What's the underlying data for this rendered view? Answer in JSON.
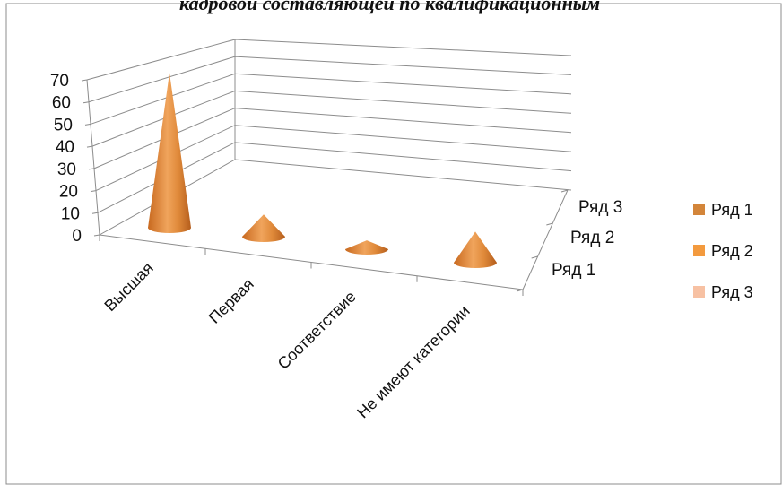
{
  "chart_data": {
    "type": "bar",
    "subtype": "3d-cone",
    "title": "кадровой составляющей по квалификационным",
    "categories": [
      "Высшая",
      "Первая",
      "Соответствие",
      "Не имеют категории"
    ],
    "series": [
      {
        "name": "Ряд 1",
        "values": [
          70,
          10,
          4,
          14
        ],
        "color": "#d3853a"
      },
      {
        "name": "Ряд 2",
        "values": [
          0,
          0,
          0,
          0
        ],
        "color": "#f39a3e"
      },
      {
        "name": "Ряд 3",
        "values": [
          0,
          0,
          0,
          0
        ],
        "color": "#f7c1a3"
      }
    ],
    "depth_labels": [
      "Ряд 3",
      "Ряд 2",
      "Ряд 1"
    ],
    "y_ticks": [
      "70",
      "60",
      "50",
      "40",
      "30",
      "20",
      "10",
      "0"
    ],
    "ylim": [
      0,
      70
    ],
    "grid": true,
    "legend": "right"
  }
}
